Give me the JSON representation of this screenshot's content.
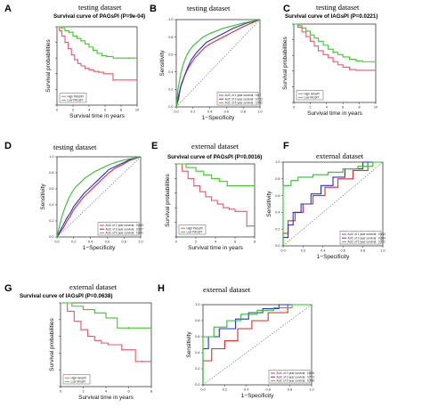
{
  "colors": {
    "high": "#e4596f",
    "low": "#45c431",
    "auc1": "#e12a2a",
    "auc3": "#2331c8",
    "auc5": "#2fbf2f",
    "diag": "#666666"
  },
  "chart_data": [
    {
      "id": "A",
      "type": "line",
      "subtype": "survival",
      "panel_letter": "A",
      "dataset_title": "testing dataset",
      "title": "Survival curve of PAGsPI (P=9e-04)",
      "xlabel": "Survival time in years",
      "ylabel": "Survival probabilities",
      "xlim": [
        0,
        10
      ],
      "ylim": [
        0,
        1
      ],
      "xticks": [
        "0",
        "2",
        "4",
        "6",
        "8",
        "10"
      ],
      "legend": [
        "High PAGsPI",
        "Low PAGsPI"
      ],
      "legend_position": "bottom-left",
      "series": [
        {
          "name": "High PAGsPI",
          "color_key": "high",
          "x": [
            0,
            0.3,
            0.6,
            1.0,
            1.4,
            1.8,
            2.2,
            2.6,
            3.0,
            3.5,
            4.0,
            4.6,
            5.2,
            5.8,
            6.4,
            7.0,
            8.0,
            9.0,
            10.0
          ],
          "y": [
            1.0,
            0.95,
            0.88,
            0.8,
            0.72,
            0.64,
            0.58,
            0.53,
            0.5,
            0.47,
            0.45,
            0.43,
            0.42,
            0.4,
            0.4,
            0.32,
            0.32,
            0.32,
            0.32
          ]
        },
        {
          "name": "Low PAGsPI",
          "color_key": "low",
          "x": [
            0,
            0.5,
            1.0,
            1.5,
            2.0,
            2.5,
            3.0,
            3.5,
            4.0,
            4.5,
            5.0,
            5.6,
            6.2,
            7.0,
            8.0,
            9.0,
            10.0
          ],
          "y": [
            1.0,
            0.98,
            0.95,
            0.93,
            0.88,
            0.85,
            0.82,
            0.78,
            0.74,
            0.7,
            0.66,
            0.63,
            0.62,
            0.6,
            0.6,
            0.6,
            0.6
          ]
        }
      ]
    },
    {
      "id": "B",
      "type": "line",
      "subtype": "roc",
      "panel_letter": "B",
      "dataset_title": "testing dataset",
      "title": "",
      "xlabel": "1−Specificity",
      "ylabel": "Sensitivity",
      "xlim": [
        0,
        1
      ],
      "ylim": [
        0,
        1
      ],
      "xticks": [
        "0.0",
        "0.2",
        "0.4",
        "0.6",
        "0.8",
        "1.0"
      ],
      "yticks": [
        "0.0",
        "0.2",
        "0.4",
        "0.6",
        "0.8",
        "1.0"
      ],
      "legend": [
        "AUC of 1 year survival : 0.67",
        "AUC of 3 year survival : 0.712",
        "AUC of 5 year survival : 0.742"
      ],
      "legend_position": "bottom-right",
      "series": [
        {
          "name": "AUC of 1 year survival : 0.67",
          "color_key": "auc1",
          "x": [
            0,
            0.03,
            0.05,
            0.08,
            0.1,
            0.14,
            0.18,
            0.22,
            0.28,
            0.34,
            0.4,
            0.48,
            0.56,
            0.64,
            0.72,
            0.8,
            0.9,
            1.0
          ],
          "y": [
            0,
            0.1,
            0.22,
            0.3,
            0.36,
            0.44,
            0.5,
            0.56,
            0.62,
            0.68,
            0.72,
            0.76,
            0.8,
            0.84,
            0.88,
            0.92,
            0.96,
            1.0
          ]
        },
        {
          "name": "AUC of 3 year survival : 0.712",
          "color_key": "auc3",
          "x": [
            0,
            0.03,
            0.06,
            0.1,
            0.14,
            0.18,
            0.24,
            0.3,
            0.36,
            0.44,
            0.52,
            0.6,
            0.68,
            0.76,
            0.84,
            0.92,
            1.0
          ],
          "y": [
            0,
            0.14,
            0.26,
            0.36,
            0.46,
            0.54,
            0.62,
            0.68,
            0.74,
            0.78,
            0.82,
            0.86,
            0.9,
            0.93,
            0.96,
            0.98,
            1.0
          ]
        },
        {
          "name": "AUC of 5 year survival : 0.742",
          "color_key": "auc5",
          "x": [
            0,
            0.02,
            0.05,
            0.08,
            0.12,
            0.16,
            0.2,
            0.26,
            0.32,
            0.4,
            0.48,
            0.56,
            0.64,
            0.72,
            0.8,
            0.9,
            1.0
          ],
          "y": [
            0,
            0.2,
            0.36,
            0.48,
            0.58,
            0.65,
            0.7,
            0.75,
            0.8,
            0.84,
            0.87,
            0.9,
            0.92,
            0.94,
            0.96,
            0.98,
            1.0
          ]
        }
      ]
    },
    {
      "id": "C",
      "type": "line",
      "subtype": "survival",
      "panel_letter": "C",
      "dataset_title": "testing dataset",
      "title": "Survival curve of IAGsPI (P=0.0221)",
      "xlabel": "Survival time in years",
      "ylabel": "Survival probabilities",
      "xlim": [
        0,
        10
      ],
      "ylim": [
        0,
        1
      ],
      "xticks": [
        "0",
        "2",
        "4",
        "6",
        "8",
        "10"
      ],
      "legend": [
        "High IAGsPI",
        "Low IAGsPI"
      ],
      "legend_position": "bottom-left",
      "series": [
        {
          "name": "High IAGsPI",
          "color_key": "high",
          "x": [
            0,
            0.5,
            1.0,
            1.5,
            2.0,
            2.5,
            3.0,
            3.6,
            4.2,
            4.8,
            5.4,
            6.0,
            6.8,
            7.6,
            8.4,
            10.0
          ],
          "y": [
            1.0,
            0.96,
            0.9,
            0.84,
            0.78,
            0.72,
            0.66,
            0.61,
            0.57,
            0.52,
            0.48,
            0.45,
            0.42,
            0.41,
            0.41,
            0.41
          ]
        },
        {
          "name": "Low IAGsPI",
          "color_key": "low",
          "x": [
            0,
            0.5,
            1.0,
            1.5,
            2.0,
            2.5,
            3.0,
            3.6,
            4.2,
            4.8,
            5.4,
            6.0,
            6.8,
            7.6,
            8.4,
            10.0
          ],
          "y": [
            1.0,
            0.98,
            0.95,
            0.91,
            0.86,
            0.82,
            0.78,
            0.73,
            0.68,
            0.64,
            0.61,
            0.58,
            0.55,
            0.53,
            0.52,
            0.52
          ]
        }
      ]
    },
    {
      "id": "D",
      "type": "line",
      "subtype": "roc",
      "panel_letter": "D",
      "dataset_title": "testing dataset",
      "title": "",
      "xlabel": "1−Specificity",
      "ylabel": "Sensitivity",
      "xlim": [
        0,
        1
      ],
      "ylim": [
        0,
        1
      ],
      "xticks": [
        "0.0",
        "0.2",
        "0.4",
        "0.6",
        "0.8",
        "1.0"
      ],
      "yticks": [
        "0.0",
        "0.2",
        "0.4",
        "0.6",
        "0.8",
        "1.0"
      ],
      "legend": [
        "AUC of 1 year survival : 0.609",
        "AUC of 3 year survival : 0.627",
        "AUC of 5 year survival : 0.691"
      ],
      "legend_position": "bottom-right",
      "series": [
        {
          "name": "AUC of 1 year survival : 0.609",
          "color_key": "auc1",
          "x": [
            0,
            0.04,
            0.08,
            0.12,
            0.16,
            0.2,
            0.26,
            0.32,
            0.38,
            0.44,
            0.5,
            0.56,
            0.62,
            0.7,
            0.78,
            0.86,
            0.94,
            1.0
          ],
          "y": [
            0,
            0.06,
            0.12,
            0.2,
            0.26,
            0.34,
            0.42,
            0.5,
            0.56,
            0.62,
            0.68,
            0.74,
            0.8,
            0.86,
            0.9,
            0.95,
            0.98,
            1.0
          ]
        },
        {
          "name": "AUC of 3 year survival : 0.627",
          "color_key": "auc3",
          "x": [
            0,
            0.04,
            0.08,
            0.12,
            0.16,
            0.2,
            0.26,
            0.32,
            0.38,
            0.44,
            0.5,
            0.56,
            0.62,
            0.7,
            0.78,
            0.86,
            0.94,
            1.0
          ],
          "y": [
            0,
            0.08,
            0.16,
            0.24,
            0.3,
            0.38,
            0.46,
            0.54,
            0.6,
            0.66,
            0.72,
            0.78,
            0.84,
            0.88,
            0.92,
            0.96,
            0.99,
            1.0
          ]
        },
        {
          "name": "AUC of 5 year survival : 0.691",
          "color_key": "auc5",
          "x": [
            0,
            0.03,
            0.06,
            0.1,
            0.14,
            0.18,
            0.22,
            0.28,
            0.34,
            0.4,
            0.46,
            0.54,
            0.62,
            0.7,
            0.8,
            0.9,
            1.0
          ],
          "y": [
            0,
            0.14,
            0.26,
            0.38,
            0.48,
            0.56,
            0.62,
            0.68,
            0.74,
            0.78,
            0.82,
            0.86,
            0.9,
            0.93,
            0.96,
            0.98,
            1.0
          ]
        }
      ]
    },
    {
      "id": "E",
      "type": "line",
      "subtype": "survival",
      "panel_letter": "E",
      "dataset_title": "external dataset",
      "title": "Survival curve of PAGsPI (P=0.0016)",
      "xlabel": "Survival time in years",
      "ylabel": "Survival probabilities",
      "xlim": [
        0,
        8
      ],
      "ylim": [
        0,
        1
      ],
      "xticks": [
        "0",
        "2",
        "4",
        "6",
        "8"
      ],
      "legend": [
        "High PAGsPI",
        "Low PAGsPI"
      ],
      "legend_position": "bottom-left",
      "series": [
        {
          "name": "High PAGsPI",
          "color_key": "high",
          "x": [
            0,
            0.6,
            1.2,
            1.8,
            2.4,
            3.0,
            3.6,
            4.2,
            4.8,
            5.4,
            6.0,
            6.6,
            7.2,
            8.0
          ],
          "y": [
            1.0,
            0.9,
            0.8,
            0.7,
            0.62,
            0.55,
            0.5,
            0.45,
            0.4,
            0.38,
            0.35,
            0.35,
            0.15,
            0.15
          ]
        },
        {
          "name": "Low PAGsPI",
          "color_key": "low",
          "x": [
            0,
            1.0,
            2.0,
            2.8,
            3.6,
            4.4,
            5.2,
            6.0,
            7.0,
            8.0
          ],
          "y": [
            1.0,
            0.95,
            0.9,
            0.85,
            0.8,
            0.76,
            0.7,
            0.7,
            0.7,
            0.7
          ]
        }
      ]
    },
    {
      "id": "F",
      "type": "line",
      "subtype": "roc",
      "panel_letter": "F",
      "dataset_title": "external dataset",
      "title": "",
      "xlabel": "1−Specificity",
      "ylabel": "Sensitivity",
      "xlim": [
        0,
        1
      ],
      "ylim": [
        0,
        1
      ],
      "xticks": [
        "0.0",
        "0.2",
        "0.4",
        "0.6",
        "0.8",
        "1.0"
      ],
      "yticks": [
        "0.0",
        "0.2",
        "0.4",
        "0.6",
        "0.8",
        "1.0"
      ],
      "legend": [
        "AUC of 1 year survival : 0.633",
        "AUC of 3 year survival : 0.689",
        "AUC of 5 year survival : 0.722"
      ],
      "legend_position": "bottom-right",
      "series": [
        {
          "name": "AUC of 1 year survival : 0.633",
          "color_key": "auc1",
          "x": [
            0,
            0,
            0.05,
            0.05,
            0.12,
            0.12,
            0.2,
            0.2,
            0.3,
            0.3,
            0.42,
            0.42,
            0.55,
            0.55,
            0.7,
            0.7,
            0.85,
            0.85,
            1.0
          ],
          "y": [
            0,
            0.15,
            0.15,
            0.3,
            0.3,
            0.4,
            0.4,
            0.5,
            0.5,
            0.6,
            0.6,
            0.7,
            0.7,
            0.8,
            0.8,
            0.9,
            0.9,
            1.0,
            1.0
          ]
        },
        {
          "name": "AUC of 3 year survival : 0.689",
          "color_key": "auc3",
          "x": [
            0,
            0,
            0.05,
            0.05,
            0.1,
            0.1,
            0.18,
            0.18,
            0.28,
            0.28,
            0.38,
            0.38,
            0.5,
            0.5,
            0.62,
            0.62,
            0.8,
            0.8,
            1.0
          ],
          "y": [
            0,
            0.1,
            0.1,
            0.25,
            0.25,
            0.4,
            0.4,
            0.5,
            0.5,
            0.62,
            0.62,
            0.72,
            0.72,
            0.82,
            0.82,
            0.92,
            0.92,
            1.0,
            1.0
          ]
        },
        {
          "name": "AUC of 5 year survival : 0.722",
          "color_key": "auc5",
          "x": [
            0,
            0,
            0.08,
            0.08,
            0.15,
            0.15,
            0.3,
            0.3,
            0.45,
            0.45,
            0.6,
            0.6,
            0.75,
            0.75,
            0.9,
            0.9,
            1.0
          ],
          "y": [
            0,
            0.72,
            0.72,
            0.78,
            0.78,
            0.82,
            0.82,
            0.85,
            0.85,
            0.88,
            0.88,
            0.92,
            0.92,
            0.95,
            0.95,
            1.0,
            1.0
          ]
        }
      ]
    },
    {
      "id": "G",
      "type": "line",
      "subtype": "survival",
      "panel_letter": "G",
      "dataset_title": "external dataset",
      "title": "Survival curve of IAGsPI (P=0.0638)",
      "xlabel": "Survival time in years",
      "ylabel": "Survival probabilities",
      "xlim": [
        0,
        8
      ],
      "ylim": [
        0,
        1
      ],
      "xticks": [
        "0",
        "2",
        "4",
        "6",
        "8"
      ],
      "legend": [
        "High IAGsPI",
        "Low IAGsPI"
      ],
      "legend_position": "bottom-left",
      "series": [
        {
          "name": "High IAGsPI",
          "color_key": "high",
          "x": [
            0,
            0.6,
            1.2,
            1.8,
            2.4,
            3.0,
            3.6,
            4.2,
            4.8,
            5.4,
            6.0,
            6.6,
            7.2,
            8.0
          ],
          "y": [
            1.0,
            0.9,
            0.78,
            0.68,
            0.6,
            0.55,
            0.52,
            0.5,
            0.5,
            0.44,
            0.44,
            0.3,
            0.3,
            0.3
          ]
        },
        {
          "name": "Low IAGsPI",
          "color_key": "low",
          "x": [
            0,
            1.0,
            2.0,
            3.0,
            4.0,
            5.0,
            6.0,
            7.0,
            8.0
          ],
          "y": [
            1.0,
            0.96,
            0.92,
            0.88,
            0.82,
            0.7,
            0.7,
            0.7,
            0.7
          ]
        }
      ]
    },
    {
      "id": "H",
      "type": "line",
      "subtype": "roc",
      "panel_letter": "H",
      "dataset_title": "external dataset",
      "title": "",
      "xlabel": "1−Specificity",
      "ylabel": "Sensitivity",
      "xlim": [
        0,
        1
      ],
      "ylim": [
        0,
        1
      ],
      "xticks": [
        "0.0",
        "0.2",
        "0.4",
        "0.6",
        "0.8",
        "1.0"
      ],
      "yticks": [
        "0.0",
        "0.2",
        "0.4",
        "0.6",
        "0.8",
        "1.0"
      ],
      "legend": [
        "AUC of 1 year survival : 0.665",
        "AUC of 3 year survival : 0.773",
        "AUC of 5 year survival : 0.796"
      ],
      "legend_position": "bottom-right",
      "series": [
        {
          "name": "AUC of 1 year survival : 0.665",
          "color_key": "auc1",
          "x": [
            0,
            0,
            0.08,
            0.08,
            0.2,
            0.2,
            0.32,
            0.32,
            0.45,
            0.45,
            0.6,
            0.6,
            0.78,
            0.78,
            1.0
          ],
          "y": [
            0,
            0.3,
            0.3,
            0.45,
            0.45,
            0.55,
            0.55,
            0.7,
            0.7,
            0.8,
            0.8,
            0.9,
            0.9,
            1.0,
            1.0
          ]
        },
        {
          "name": "AUC of 3 year survival : 0.773",
          "color_key": "auc3",
          "x": [
            0,
            0,
            0.05,
            0.05,
            0.15,
            0.15,
            0.3,
            0.3,
            0.42,
            0.42,
            0.55,
            0.55,
            0.7,
            0.7,
            1.0
          ],
          "y": [
            0,
            0.45,
            0.45,
            0.6,
            0.6,
            0.7,
            0.7,
            0.82,
            0.82,
            0.9,
            0.9,
            0.95,
            0.95,
            1.0,
            1.0
          ]
        },
        {
          "name": "AUC of 5 year survival : 0.796",
          "color_key": "auc5",
          "x": [
            0,
            0,
            0.1,
            0.1,
            0.22,
            0.22,
            0.35,
            0.35,
            0.5,
            0.5,
            0.65,
            0.65,
            0.82,
            0.82,
            1.0
          ],
          "y": [
            0,
            0.6,
            0.6,
            0.72,
            0.72,
            0.8,
            0.8,
            0.88,
            0.88,
            0.93,
            0.93,
            0.96,
            0.96,
            1.0,
            1.0
          ]
        }
      ]
    }
  ]
}
